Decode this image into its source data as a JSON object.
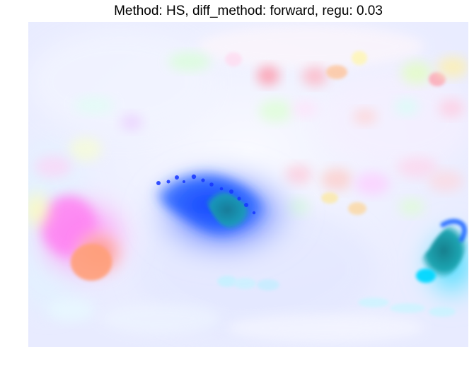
{
  "figure": {
    "title": "Method: HS, diff_method: forward, regu: 0.03",
    "colors": {
      "background_tint": "#e9ecff",
      "deep_blue": "#1a3cff",
      "teal": "#0f9aa8",
      "cyan": "#15d6ff",
      "magenta": "#ff74ff",
      "salmon": "#ff8f88",
      "yellow_tint": "#fffbb8"
    }
  }
}
